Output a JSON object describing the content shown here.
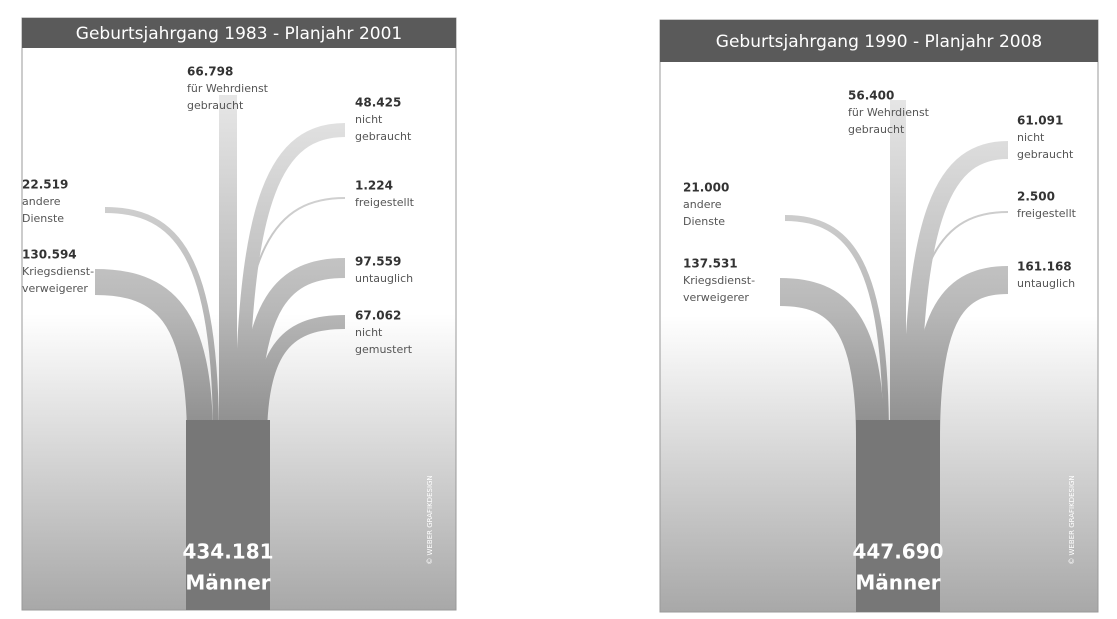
{
  "panels": [
    {
      "title": "Geburtsjahrgang 1983 - Planjahr 2001",
      "flows": [
        {
          "value": "66.798",
          "label": [
            "für Wehrdienst",
            "gebraucht"
          ]
        },
        {
          "value": "48.425",
          "label": [
            "nicht",
            "gebraucht"
          ]
        },
        {
          "value": "1.224",
          "label": [
            "freigestellt"
          ]
        },
        {
          "value": "97.559",
          "label": [
            "untauglich"
          ]
        },
        {
          "value": "67.062",
          "label": [
            "nicht",
            "gemustert"
          ]
        },
        {
          "value": "22.519",
          "label": [
            "andere",
            "Dienste"
          ]
        },
        {
          "value": "130.594",
          "label": [
            "Kriegsdienst-",
            "verweigerer"
          ]
        }
      ],
      "total": {
        "value": "434.181",
        "label": "Männer"
      },
      "credit": "© WEBER GRAFIKDESIGN"
    },
    {
      "title": "Geburtsjahrgang 1990 - Planjahr 2008",
      "flows": [
        {
          "value": "56.400",
          "label": [
            "für Wehrdienst",
            "gebraucht"
          ]
        },
        {
          "value": "61.091",
          "label": [
            "nicht",
            "gebraucht"
          ]
        },
        {
          "value": "2.500",
          "label": [
            "freigestellt"
          ]
        },
        {
          "value": "161.168",
          "label": [
            "untauglich"
          ]
        },
        {
          "value": "21.000",
          "label": [
            "andere",
            "Dienste"
          ]
        },
        {
          "value": "137.531",
          "label": [
            "Kriegsdienst-",
            "verweigerer"
          ]
        }
      ],
      "total": {
        "value": "447.690",
        "label": "Männer"
      },
      "credit": "© WEBER GRAFIKDESIGN"
    }
  ]
}
